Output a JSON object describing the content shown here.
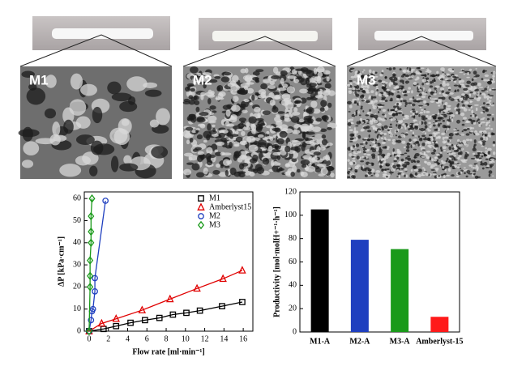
{
  "panels": [
    "M1",
    "M2",
    "M3"
  ],
  "chart_data": [
    {
      "type": "scatter",
      "x_label": "Flow rate [ml·min⁻¹]",
      "y_label": "ΔP [kPa·cm⁻¹]",
      "xlim": [
        -0.5,
        17
      ],
      "xticks": [
        0,
        2,
        4,
        6,
        8,
        10,
        12,
        14,
        16
      ],
      "ylim": [
        0,
        63
      ],
      "yticks": [
        0,
        10,
        20,
        30,
        40,
        50,
        60
      ],
      "legend": "upper right",
      "series": [
        {
          "name": "M1",
          "color": "#000000",
          "marker": "square",
          "x": [
            0,
            1.5,
            2.8,
            4.3,
            5.8,
            7.3,
            8.7,
            10.1,
            11.5,
            13.8,
            15.9
          ],
          "values": [
            0,
            1,
            2.3,
            3.8,
            5,
            6,
            7.5,
            8.3,
            9.3,
            11.3,
            13.2
          ]
        },
        {
          "name": "Amberlyst15",
          "color": "#e00000",
          "marker": "triangle",
          "x": [
            0,
            1.3,
            2.8,
            5.5,
            8.4,
            11.2,
            13.9,
            15.9
          ],
          "values": [
            0,
            3.5,
            5.6,
            9.5,
            14.5,
            19.3,
            23.7,
            27.5
          ]
        },
        {
          "name": "M2",
          "color": "#1f3fbf",
          "marker": "circle",
          "x": [
            0,
            0.2,
            0.3,
            0.4,
            0.6,
            0.6,
            1.7
          ],
          "values": [
            0,
            5,
            9,
            10,
            18,
            24,
            59
          ]
        },
        {
          "name": "M3",
          "color": "#1a9a1a",
          "marker": "diamond",
          "x": [
            0,
            0.1,
            0.1,
            0.1,
            0.2,
            0.2,
            0.2,
            0.3
          ],
          "values": [
            0,
            20,
            25,
            32,
            40,
            45,
            52,
            60
          ]
        }
      ]
    },
    {
      "type": "bar",
      "y_label": "Productivity [mol·molH+⁻¹·h⁻¹]",
      "categories": [
        "M1-A",
        "M2-A",
        "M3-A",
        "Amberlyst-15"
      ],
      "values": [
        105,
        79,
        71,
        13
      ],
      "colors": [
        "#000000",
        "#1f3fbf",
        "#1a9a1a",
        "#ff1a1a"
      ],
      "ylim": [
        0,
        120
      ],
      "yticks": [
        0,
        20,
        40,
        60,
        80,
        100,
        120
      ]
    }
  ]
}
